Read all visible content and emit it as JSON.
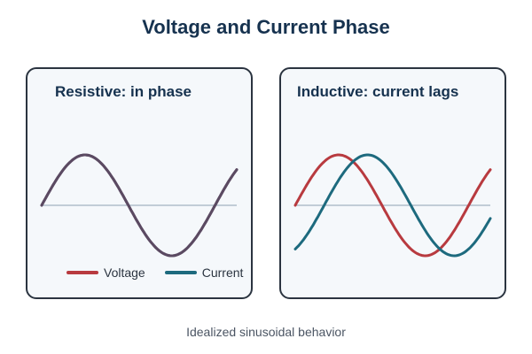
{
  "title": "Voltage and Current Phase",
  "panels": [
    {
      "id": "resistive",
      "title": "Resistive: in phase",
      "current_phase_lag_deg": 0
    },
    {
      "id": "inductive",
      "title": "Inductive: current lags",
      "current_phase_lag_deg": 60
    }
  ],
  "legend": {
    "voltage_label": "Voltage",
    "current_label": "Current"
  },
  "colors": {
    "voltage": "#b83a3f",
    "current": "#1d6a7e",
    "overlap": "#5b4a62",
    "axis": "#8d9fb3"
  },
  "footer": "Idealized sinusoidal behavior"
}
